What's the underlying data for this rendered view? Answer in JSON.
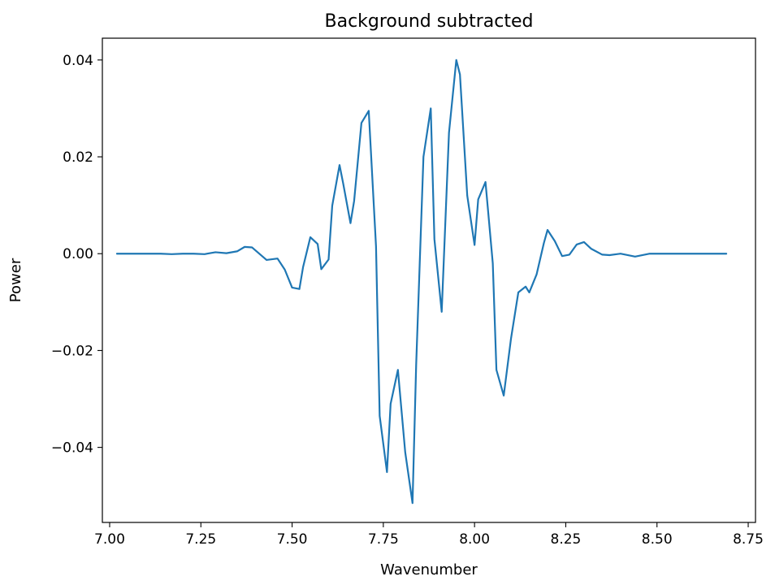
{
  "chart_data": {
    "type": "line",
    "title": "Background subtracted",
    "xlabel": "Wavenumber",
    "ylabel": "Power",
    "xlim": [
      6.98,
      8.77
    ],
    "ylim": [
      -0.0555,
      0.0445
    ],
    "xticks": [
      7.0,
      7.25,
      7.5,
      7.75,
      8.0,
      8.25,
      8.5,
      8.75
    ],
    "xtick_labels": [
      "7.00",
      "7.25",
      "7.50",
      "7.75",
      "8.00",
      "8.25",
      "8.50",
      "8.75"
    ],
    "yticks": [
      -0.04,
      -0.02,
      0.0,
      0.02,
      0.04
    ],
    "ytick_labels": [
      "−0.04",
      "−0.02",
      "0.00",
      "0.02",
      "0.04"
    ],
    "grid": false,
    "series": [
      {
        "color": "#1f77b4",
        "x": [
          7.02,
          7.05,
          7.08,
          7.11,
          7.14,
          7.17,
          7.2,
          7.23,
          7.26,
          7.29,
          7.32,
          7.35,
          7.37,
          7.39,
          7.43,
          7.46,
          7.48,
          7.5,
          7.52,
          7.53,
          7.55,
          7.57,
          7.58,
          7.6,
          7.61,
          7.63,
          7.64,
          7.66,
          7.67,
          7.69,
          7.71,
          7.73,
          7.74,
          7.76,
          7.77,
          7.79,
          7.81,
          7.83,
          7.84,
          7.86,
          7.88,
          7.89,
          7.91,
          7.93,
          7.95,
          7.96,
          7.98,
          8.0,
          8.01,
          8.03,
          8.05,
          8.06,
          8.08,
          8.1,
          8.12,
          8.14,
          8.15,
          8.17,
          8.19,
          8.2,
          8.22,
          8.24,
          8.26,
          8.28,
          8.3,
          8.32,
          8.35,
          8.37,
          8.4,
          8.44,
          8.48,
          8.52,
          8.56,
          8.6,
          8.64,
          8.69
        ],
        "y": [
          0.0,
          0.0,
          0.0,
          0.0,
          0.0,
          -0.0001,
          0.0,
          0.0,
          -0.0001,
          0.0003,
          0.0001,
          0.0005,
          0.0014,
          0.0013,
          -0.0013,
          -0.001,
          -0.0033,
          -0.007,
          -0.0073,
          -0.0028,
          0.0034,
          0.002,
          -0.0032,
          -0.0012,
          0.0099,
          0.0183,
          0.0145,
          0.0063,
          0.0109,
          0.027,
          0.0295,
          0.0015,
          -0.0335,
          -0.0451,
          -0.031,
          -0.024,
          -0.041,
          -0.0515,
          -0.023,
          0.02,
          0.03,
          0.003,
          -0.012,
          0.025,
          0.04,
          0.037,
          0.012,
          0.0018,
          0.0112,
          0.0148,
          -0.002,
          -0.024,
          -0.0293,
          -0.0175,
          -0.008,
          -0.0068,
          -0.008,
          -0.0043,
          0.0022,
          0.0049,
          0.0026,
          -0.0005,
          -0.0002,
          0.0019,
          0.0024,
          0.001,
          -0.0002,
          -0.0003,
          0.0,
          -0.0006,
          0.0,
          0.0,
          0.0,
          0.0,
          0.0,
          0.0
        ]
      }
    ]
  }
}
